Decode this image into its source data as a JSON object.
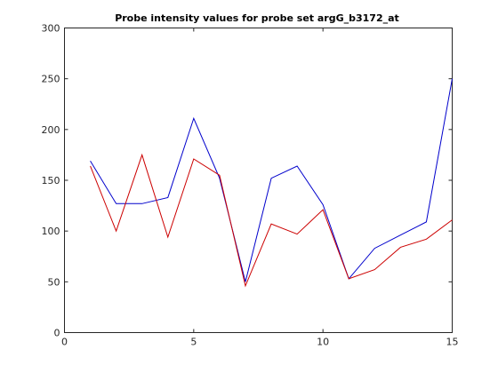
{
  "chart_data": {
    "type": "line",
    "title": "Probe intensity values for probe set argG_b3172_at",
    "xlabel": "",
    "ylabel": "",
    "xlim": [
      0,
      15
    ],
    "ylim": [
      0,
      300
    ],
    "xticks": [
      0,
      5,
      10,
      15
    ],
    "yticks": [
      0,
      50,
      100,
      150,
      200,
      250,
      300
    ],
    "grid": false,
    "legend": "none",
    "x": [
      1,
      2,
      3,
      4,
      5,
      6,
      7,
      8,
      9,
      10,
      11,
      12,
      13,
      14,
      15
    ],
    "series": [
      {
        "color": "#0000cc",
        "values": [
          169,
          127,
          127,
          133,
          211,
          152,
          50,
          152,
          164,
          126,
          53,
          83,
          96,
          109,
          250
        ]
      },
      {
        "color": "#cc0000",
        "values": [
          164,
          100,
          175,
          94,
          171,
          155,
          46,
          107,
          97,
          121,
          53,
          62,
          84,
          92,
          111
        ]
      }
    ]
  }
}
